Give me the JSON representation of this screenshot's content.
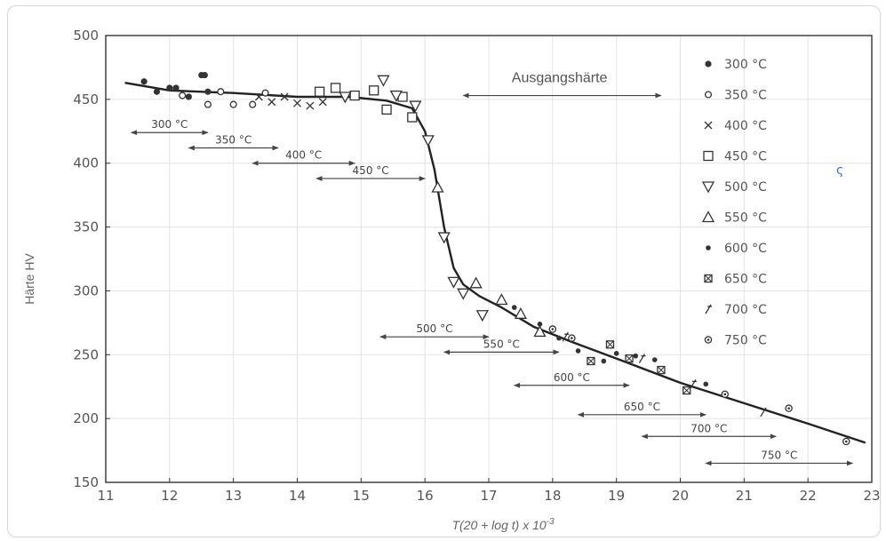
{
  "chart_data": {
    "type": "scatter",
    "title": "",
    "xlabel": "T(20 + log t) x 10-3",
    "xlabel_base": "T(20 + log t) x 10",
    "xlabel_exp": "-3",
    "ylabel": "Härte HV",
    "xlim": [
      11,
      23
    ],
    "ylim": [
      150,
      500
    ],
    "xticks": [
      "11",
      "12",
      "13",
      "14",
      "15",
      "16",
      "17",
      "18",
      "19",
      "20",
      "21",
      "22",
      "23"
    ],
    "yticks": [
      "150",
      "200",
      "250",
      "300",
      "350",
      "400",
      "450",
      "500"
    ],
    "grid": true,
    "legend_position": "right",
    "annotation": "Ausgangshärte",
    "annotation_range": [
      16.6,
      19.7
    ],
    "annotation_y": 453,
    "stray_mark": "ς",
    "curve": {
      "x": [
        11.3,
        12.0,
        13.0,
        14.0,
        14.8,
        15.4,
        15.8,
        16.0,
        16.15,
        16.3,
        16.45,
        16.6,
        16.85,
        17.2,
        17.7,
        18.3,
        19.0,
        20.0,
        21.0,
        22.0,
        22.9
      ],
      "y": [
        463,
        457,
        455,
        452,
        452,
        449,
        443,
        425,
        395,
        350,
        318,
        305,
        296,
        287,
        272,
        260,
        247,
        228,
        212,
        196,
        181
      ]
    },
    "series": [
      {
        "name": "300 °C",
        "marker": "filled-circle",
        "x": [
          11.6,
          11.8,
          12.0,
          12.1,
          12.3,
          12.5,
          12.55,
          12.6
        ],
        "y": [
          464,
          456,
          459,
          459,
          452,
          469,
          469,
          456
        ]
      },
      {
        "name": "350 °C",
        "marker": "open-circle",
        "x": [
          12.2,
          12.6,
          12.8,
          13.0,
          13.3,
          13.5
        ],
        "y": [
          453,
          446,
          456,
          446,
          446,
          455
        ]
      },
      {
        "name": "400 °C",
        "marker": "cross",
        "x": [
          13.4,
          13.6,
          13.8,
          14.0,
          14.2,
          14.4
        ],
        "y": [
          452,
          448,
          452,
          447,
          445,
          448
        ]
      },
      {
        "name": "450 °C",
        "marker": "open-square",
        "x": [
          14.35,
          14.6,
          14.9,
          15.2,
          15.4,
          15.65,
          15.8
        ],
        "y": [
          456,
          459,
          453,
          457,
          442,
          452,
          436
        ]
      },
      {
        "name": "500 °C",
        "marker": "open-triangle-down",
        "x": [
          14.75,
          15.35,
          15.55,
          15.85,
          16.05,
          16.3,
          16.45,
          16.6,
          16.9
        ],
        "y": [
          452,
          465,
          453,
          445,
          418,
          342,
          307,
          298,
          281
        ]
      },
      {
        "name": "550 °C",
        "marker": "open-triangle-up",
        "x": [
          16.2,
          16.8,
          17.2,
          17.5,
          17.8
        ],
        "y": [
          381,
          306,
          293,
          282,
          268
        ]
      },
      {
        "name": "600 °C",
        "marker": "small-filled-circle",
        "x": [
          17.4,
          17.8,
          18.1,
          18.4,
          18.8,
          19.0,
          19.3,
          19.6,
          20.4
        ],
        "y": [
          287,
          274,
          263,
          253,
          245,
          251,
          249,
          246,
          227
        ]
      },
      {
        "name": "650 °C",
        "marker": "hatched-square",
        "x": [
          18.6,
          18.9,
          19.2,
          19.7,
          20.1
        ],
        "y": [
          245,
          258,
          247,
          238,
          222
        ]
      },
      {
        "name": "700 °C",
        "marker": "slash",
        "x": [
          18.2,
          19.4,
          20.2,
          21.3
        ],
        "y": [
          264,
          247,
          227,
          205
        ]
      },
      {
        "name": "750 °C",
        "marker": "dotted-circle",
        "x": [
          18.0,
          18.3,
          20.7,
          21.7,
          22.6
        ],
        "y": [
          270,
          263,
          219,
          208,
          182
        ]
      }
    ],
    "ranges": [
      {
        "label": "300 °C",
        "x0": 11.4,
        "x1": 12.6,
        "y": 424
      },
      {
        "label": "350 °C",
        "x0": 12.3,
        "x1": 13.7,
        "y": 412
      },
      {
        "label": "400 °C",
        "x0": 13.3,
        "x1": 14.9,
        "y": 400
      },
      {
        "label": "450 °C",
        "x0": 14.3,
        "x1": 16.0,
        "y": 388
      },
      {
        "label": "500 °C",
        "x0": 15.3,
        "x1": 17.0,
        "y": 264
      },
      {
        "label": "550 °C",
        "x0": 16.3,
        "x1": 18.1,
        "y": 252
      },
      {
        "label": "600 °C",
        "x0": 17.4,
        "x1": 19.2,
        "y": 226
      },
      {
        "label": "650 °C",
        "x0": 18.4,
        "x1": 20.4,
        "y": 203
      },
      {
        "label": "700 °C",
        "x0": 19.4,
        "x1": 21.5,
        "y": 186
      },
      {
        "label": "750 °C",
        "x0": 20.4,
        "x1": 22.7,
        "y": 165
      }
    ]
  }
}
